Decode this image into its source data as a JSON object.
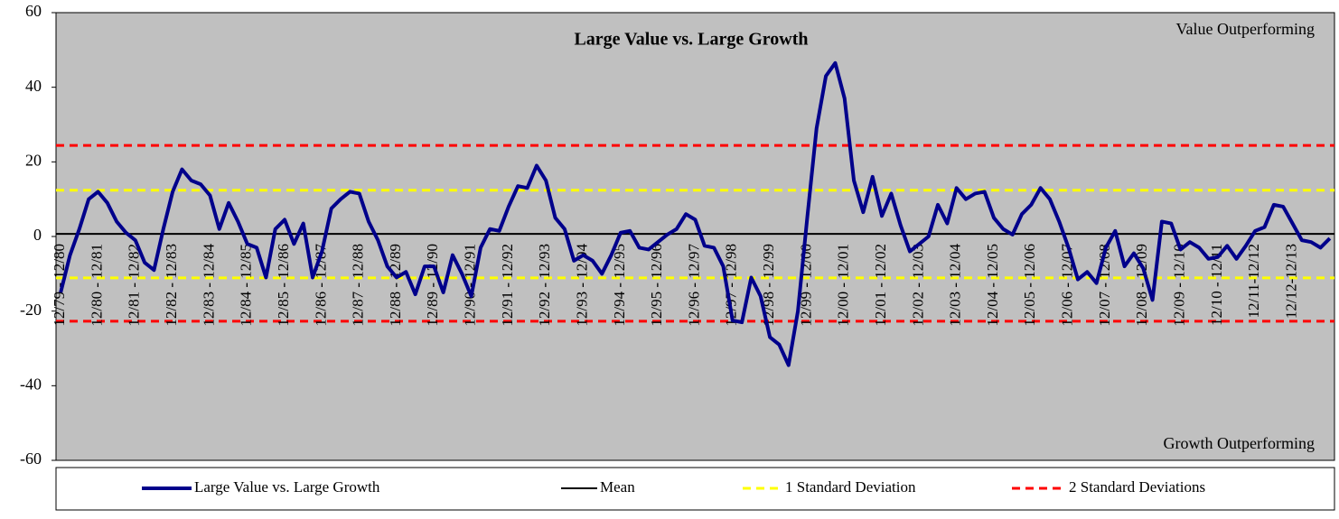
{
  "chart_data": {
    "type": "line",
    "title": "Large Value vs. Large Growth",
    "annotations": [
      "Value  Outperforming",
      "Growth  Outperforming"
    ],
    "categories": [
      "12/79 - 12/80",
      null,
      null,
      null,
      "12/80 - 12/81",
      null,
      null,
      null,
      "12/81 - 12/82",
      null,
      null,
      null,
      "12/82 - 12/83",
      null,
      null,
      null,
      "12/83 - 12/84",
      null,
      null,
      null,
      "12/84 - 12/85",
      null,
      null,
      null,
      "12/85 - 12/86",
      null,
      null,
      null,
      "12/86 - 12/87",
      null,
      null,
      null,
      "12/87 - 12/88",
      null,
      null,
      null,
      "12/88 - 12/89",
      null,
      null,
      null,
      "12/89 - 12/90",
      null,
      null,
      null,
      "12/90 - 12/91",
      null,
      null,
      null,
      "12/91 - 12/92",
      null,
      null,
      null,
      "12/92 - 12/93",
      null,
      null,
      null,
      "12/93 - 12/94",
      null,
      null,
      null,
      "12/94 - 12/95",
      null,
      null,
      null,
      "12/95 - 12/96",
      null,
      null,
      null,
      "12/96 - 12/97",
      null,
      null,
      null,
      "12/97 - 12/98",
      null,
      null,
      null,
      "12/98 - 12/99",
      null,
      null,
      null,
      "12/99 - 12/00",
      null,
      null,
      null,
      "12/00 - 12/01",
      null,
      null,
      null,
      "12/01 - 12/02",
      null,
      null,
      null,
      "12/02 - 12/03",
      null,
      null,
      null,
      "12/03 - 12/04",
      null,
      null,
      null,
      "12/04 - 12/05",
      null,
      null,
      null,
      "12/05 - 12/06",
      null,
      null,
      null,
      "12/06 - 12/07",
      null,
      null,
      null,
      "12/07 - 12/08",
      null,
      null,
      null,
      "12/08 - 12/09",
      null,
      null,
      null,
      "12/09 - 12/10",
      null,
      null,
      null,
      "12/10 - 12/11",
      null,
      null,
      null,
      "12/11-12/12",
      null,
      null,
      null,
      "12/12-12/13",
      null,
      null,
      null,
      null
    ],
    "series": [
      {
        "name": "Large Value vs. Large Growth",
        "color": "#00008b",
        "values": [
          -15,
          -5,
          2,
          10,
          12,
          9,
          4,
          1,
          -1,
          -7,
          -9,
          2,
          12,
          18,
          15,
          14,
          11,
          2,
          9,
          4,
          -2,
          -3,
          -11,
          2,
          4.5,
          -2,
          3.5,
          -11,
          -4,
          7.5,
          10,
          12,
          11.5,
          4,
          -1,
          -8,
          -11,
          -9.5,
          -15.5,
          -8,
          -8,
          -15,
          -5,
          -10,
          -16,
          -3,
          2,
          1.5,
          8,
          13.5,
          13,
          19,
          15,
          5,
          2,
          -6.5,
          -5,
          -6.5,
          -10,
          -5,
          1,
          1.5,
          -3,
          -3.5,
          -1.5,
          0.5,
          2,
          6,
          4.5,
          -2.5,
          -3,
          -8,
          -22.5,
          -23,
          -11,
          -16,
          -27,
          -29,
          -34.5,
          -20,
          5,
          29,
          43,
          46.5,
          37,
          15,
          6.5,
          16,
          5.5,
          11.5,
          3,
          -4,
          -2,
          0,
          8.5,
          3.5,
          13,
          10,
          11.5,
          12,
          5,
          2,
          0.5,
          6,
          8.5,
          13,
          10,
          4,
          -3,
          -11.5,
          -9.5,
          -12.5,
          -3,
          1.5,
          -8,
          -4.5,
          -8.5,
          -17,
          4,
          3.5,
          -3.5,
          -1.5,
          -3,
          -6,
          -5.5,
          -2.5,
          -6,
          -2.5,
          1.5,
          2.5,
          8.5,
          8,
          3.5,
          -1,
          -1.5,
          -3,
          -0.5
        ]
      }
    ],
    "reference_lines": [
      {
        "name": "Mean",
        "color": "#000000",
        "dashed": false,
        "values": [
          0.7
        ]
      },
      {
        "name": "1 Standard Deviation",
        "color": "#ffff00",
        "dashed": true,
        "values": [
          12.4,
          -11.1
        ]
      },
      {
        "name": "2 Standard Deviations",
        "color": "#ff0000",
        "dashed": true,
        "values": [
          24.4,
          -22.7
        ]
      }
    ],
    "ylim": [
      -60,
      60
    ],
    "yticks": [
      -60,
      -40,
      -20,
      0,
      20,
      40,
      60
    ],
    "grid": false
  }
}
